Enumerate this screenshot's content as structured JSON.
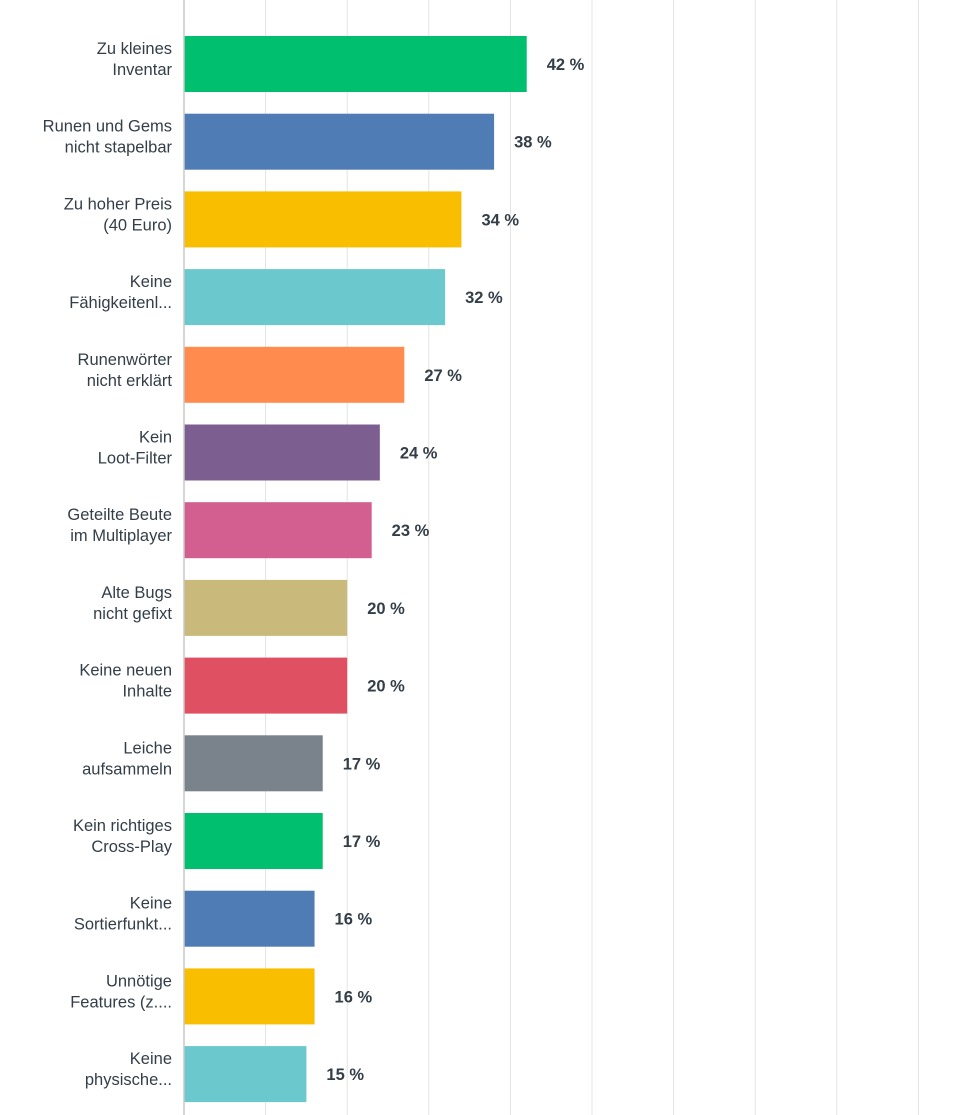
{
  "chart_data": {
    "type": "bar",
    "orientation": "horizontal",
    "categories": [
      [
        "Zu kleines",
        "Inventar"
      ],
      [
        "Runen und Gems",
        "nicht stapelbar"
      ],
      [
        "Zu hoher Preis",
        "(40 Euro)"
      ],
      [
        "Keine",
        "Fähigkeitenl..."
      ],
      [
        "Runenwörter",
        "nicht erklärt"
      ],
      [
        "Kein",
        "Loot-Filter"
      ],
      [
        "Geteilte Beute",
        "im Multiplayer"
      ],
      [
        "Alte Bugs",
        "nicht gefixt"
      ],
      [
        "Keine neuen",
        "Inhalte"
      ],
      [
        "Leiche",
        "aufsammeln"
      ],
      [
        "Kein richtiges",
        "Cross-Play"
      ],
      [
        "Keine",
        "Sortierfunkt..."
      ],
      [
        "Unnötige",
        "Features (z...."
      ],
      [
        "Keine",
        "physische..."
      ]
    ],
    "values": [
      42,
      38,
      34,
      32,
      27,
      24,
      23,
      20,
      20,
      17,
      17,
      16,
      16,
      15
    ],
    "value_labels": [
      "42 %",
      "38 %",
      "34 %",
      "32 %",
      "27 %",
      "24 %",
      "23 %",
      "20 %",
      "20 %",
      "17 %",
      "17 %",
      "16 %",
      "16 %",
      "15 %"
    ],
    "colors": [
      "#00bf6f",
      "#507cb6",
      "#f9be00",
      "#6bc8cd",
      "#ff8b4f",
      "#7d5e90",
      "#d25f90",
      "#c9b97a",
      "#de5062",
      "#7a828b",
      "#00bf6f",
      "#507cb6",
      "#f9be00",
      "#6bc8cd"
    ],
    "xlim": [
      0,
      100
    ],
    "grid": true
  }
}
